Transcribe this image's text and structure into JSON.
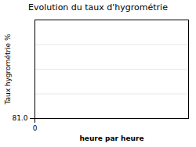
{
  "chart_data": {
    "type": "line",
    "title": "Evolution du taux d'hygrométrie",
    "xlabel": "heure par heure",
    "ylabel": "Taux hygrométrie %",
    "xlim": [
      0,
      10
    ],
    "xticks": [
      0
    ],
    "ylim": [
      81.0,
      91.0
    ],
    "yticks": [
      {
        "value": 81.0,
        "label": "81.0"
      }
    ],
    "grid": true
  }
}
